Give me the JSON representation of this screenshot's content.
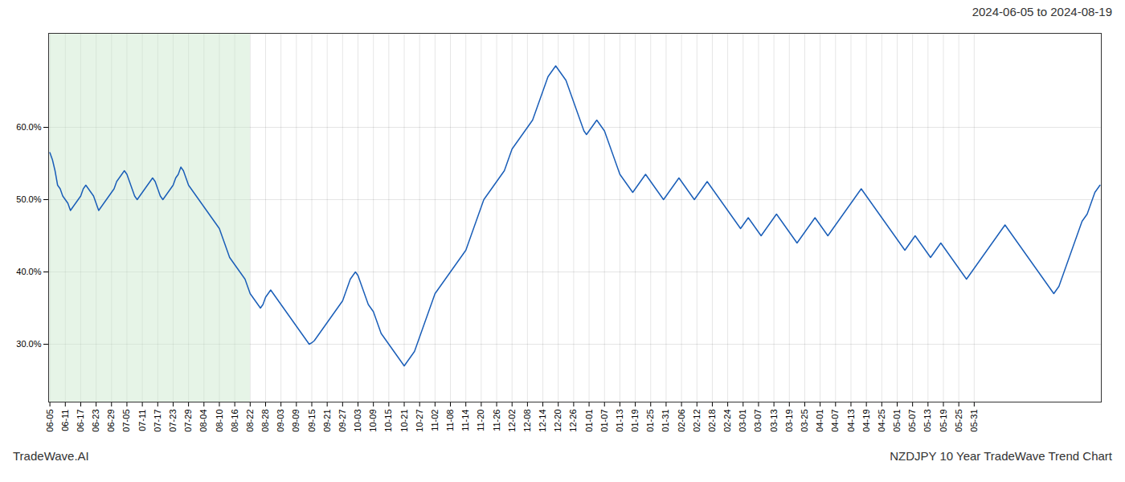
{
  "chart_data": {
    "type": "line",
    "title": "2024-06-05 to 2024-08-19",
    "annotations": [
      "TradeWave.AI",
      "NZDJPY 10 Year TradeWave Trend Chart"
    ],
    "color": "#1a5eb8",
    "grid": true,
    "highlight": {
      "from": "06-05",
      "to": "08-22",
      "color": "#c8e6c9"
    },
    "ylim": [
      22,
      73
    ],
    "yticks": [
      {
        "value": 30.0,
        "label": "30.0%"
      },
      {
        "value": 40.0,
        "label": "40.0%"
      },
      {
        "value": 50.0,
        "label": "50.0%"
      },
      {
        "value": 60.0,
        "label": "60.0%"
      }
    ],
    "categories": [
      "06-05",
      null,
      null,
      null,
      null,
      null,
      "06-11",
      null,
      null,
      null,
      null,
      null,
      "06-17",
      null,
      null,
      null,
      null,
      null,
      "06-23",
      null,
      null,
      null,
      null,
      null,
      "06-29",
      null,
      null,
      null,
      null,
      null,
      "07-05",
      null,
      null,
      null,
      null,
      null,
      "07-11",
      null,
      null,
      null,
      null,
      null,
      "07-17",
      null,
      null,
      null,
      null,
      null,
      "07-23",
      null,
      null,
      null,
      null,
      null,
      "07-29",
      null,
      null,
      null,
      null,
      null,
      "08-04",
      null,
      null,
      null,
      null,
      null,
      "08-10",
      null,
      null,
      null,
      null,
      null,
      "08-16",
      null,
      null,
      null,
      null,
      null,
      "08-22",
      null,
      null,
      null,
      null,
      null,
      "08-28",
      null,
      null,
      null,
      null,
      null,
      "09-03",
      null,
      null,
      null,
      null,
      null,
      "09-09",
      null,
      null,
      null,
      null,
      null,
      "09-15",
      null,
      null,
      null,
      null,
      null,
      "09-21",
      null,
      null,
      null,
      null,
      null,
      "09-27",
      null,
      null,
      null,
      null,
      null,
      "10-03",
      null,
      null,
      null,
      null,
      null,
      "10-09",
      null,
      null,
      null,
      null,
      null,
      "10-15",
      null,
      null,
      null,
      null,
      null,
      "10-21",
      null,
      null,
      null,
      null,
      null,
      "10-27",
      null,
      null,
      null,
      null,
      null,
      "11-02",
      null,
      null,
      null,
      null,
      null,
      "11-08",
      null,
      null,
      null,
      null,
      null,
      "11-14",
      null,
      null,
      null,
      null,
      null,
      "11-20",
      null,
      null,
      null,
      null,
      null,
      "11-26",
      null,
      null,
      null,
      null,
      null,
      "12-02",
      null,
      null,
      null,
      null,
      null,
      "12-08",
      null,
      null,
      null,
      null,
      null,
      "12-14",
      null,
      null,
      null,
      null,
      null,
      "12-20",
      null,
      null,
      null,
      null,
      null,
      "12-26",
      null,
      null,
      null,
      null,
      null,
      "01-01",
      null,
      null,
      null,
      null,
      null,
      "01-07",
      null,
      null,
      null,
      null,
      null,
      "01-13",
      null,
      null,
      null,
      null,
      null,
      "01-19",
      null,
      null,
      null,
      null,
      null,
      "01-25",
      null,
      null,
      null,
      null,
      null,
      "01-31",
      null,
      null,
      null,
      null,
      null,
      "02-06",
      null,
      null,
      null,
      null,
      null,
      "02-12",
      null,
      null,
      null,
      null,
      null,
      "02-18",
      null,
      null,
      null,
      null,
      null,
      "02-24",
      null,
      null,
      null,
      null,
      null,
      "03-01",
      null,
      null,
      null,
      null,
      null,
      "03-07",
      null,
      null,
      null,
      null,
      null,
      "03-13",
      null,
      null,
      null,
      null,
      null,
      "03-19",
      null,
      null,
      null,
      null,
      null,
      "03-25",
      null,
      null,
      null,
      null,
      null,
      "04-01",
      null,
      null,
      null,
      null,
      null,
      "04-07",
      null,
      null,
      null,
      null,
      null,
      "04-13",
      null,
      null,
      null,
      null,
      null,
      "04-19",
      null,
      null,
      null,
      null,
      null,
      "04-25",
      null,
      null,
      null,
      null,
      null,
      "05-01",
      null,
      null,
      null,
      null,
      null,
      "05-07",
      null,
      null,
      null,
      null,
      null,
      "05-13",
      null,
      null,
      null,
      null,
      null,
      "05-19",
      null,
      null,
      null,
      null,
      null,
      "05-25",
      null,
      null,
      null,
      null,
      null,
      "05-31",
      null,
      null,
      null,
      null,
      null,
      null,
      null,
      null,
      null,
      null,
      null,
      null,
      null,
      null,
      null,
      null,
      null,
      null,
      null,
      null,
      null,
      null,
      null,
      null,
      null,
      null,
      null,
      null,
      null,
      null,
      null,
      null,
      null,
      null,
      null,
      null,
      null,
      null,
      null,
      null,
      null,
      null,
      null,
      null,
      null,
      null,
      null,
      null,
      null
    ],
    "values": [
      56.5,
      55.5,
      54.0,
      52.0,
      51.5,
      50.5,
      50.0,
      49.5,
      48.5,
      49.0,
      49.5,
      50.0,
      50.5,
      51.5,
      52.0,
      51.5,
      51.0,
      50.5,
      49.5,
      48.5,
      49.0,
      49.5,
      50.0,
      50.5,
      51.0,
      51.5,
      52.5,
      53.0,
      53.5,
      54.0,
      53.5,
      52.5,
      51.5,
      50.5,
      50.0,
      50.5,
      51.0,
      51.5,
      52.0,
      52.5,
      53.0,
      52.5,
      51.5,
      50.5,
      50.0,
      50.5,
      51.0,
      51.5,
      52.0,
      53.0,
      53.5,
      54.5,
      54.0,
      53.0,
      52.0,
      51.5,
      51.0,
      50.5,
      50.0,
      49.5,
      49.0,
      48.5,
      48.0,
      47.5,
      47.0,
      46.5,
      46.0,
      45.0,
      44.0,
      43.0,
      42.0,
      41.5,
      41.0,
      40.5,
      40.0,
      39.5,
      39.0,
      38.0,
      37.0,
      36.5,
      36.0,
      35.5,
      35.0,
      35.5,
      36.5,
      37.0,
      37.5,
      37.0,
      36.5,
      36.0,
      35.5,
      35.0,
      34.5,
      34.0,
      33.5,
      33.0,
      32.5,
      32.0,
      31.5,
      31.0,
      30.5,
      30.0,
      30.2,
      30.5,
      31.0,
      31.5,
      32.0,
      32.5,
      33.0,
      33.5,
      34.0,
      34.5,
      35.0,
      35.5,
      36.0,
      37.0,
      38.0,
      39.0,
      39.5,
      40.0,
      39.5,
      38.5,
      37.5,
      36.5,
      35.5,
      35.0,
      34.5,
      33.5,
      32.5,
      31.5,
      31.0,
      30.5,
      30.0,
      29.5,
      29.0,
      28.5,
      28.0,
      27.5,
      27.0,
      27.5,
      28.0,
      28.5,
      29.0,
      30.0,
      31.0,
      32.0,
      33.0,
      34.0,
      35.0,
      36.0,
      37.0,
      37.5,
      38.0,
      38.5,
      39.0,
      39.5,
      40.0,
      40.5,
      41.0,
      41.5,
      42.0,
      42.5,
      43.0,
      44.0,
      45.0,
      46.0,
      47.0,
      48.0,
      49.0,
      50.0,
      50.5,
      51.0,
      51.5,
      52.0,
      52.5,
      53.0,
      53.5,
      54.0,
      55.0,
      56.0,
      57.0,
      57.5,
      58.0,
      58.5,
      59.0,
      59.5,
      60.0,
      60.5,
      61.0,
      62.0,
      63.0,
      64.0,
      65.0,
      66.0,
      67.0,
      67.5,
      68.0,
      68.5,
      68.0,
      67.5,
      67.0,
      66.5,
      65.5,
      64.5,
      63.5,
      62.5,
      61.5,
      60.5,
      59.5,
      59.0,
      59.5,
      60.0,
      60.5,
      61.0,
      60.5,
      60.0,
      59.5,
      58.5,
      57.5,
      56.5,
      55.5,
      54.5,
      53.5,
      53.0,
      52.5,
      52.0,
      51.5,
      51.0,
      51.5,
      52.0,
      52.5,
      53.0,
      53.5,
      53.0,
      52.5,
      52.0,
      51.5,
      51.0,
      50.5,
      50.0,
      50.5,
      51.0,
      51.5,
      52.0,
      52.5,
      53.0,
      52.5,
      52.0,
      51.5,
      51.0,
      50.5,
      50.0,
      50.5,
      51.0,
      51.5,
      52.0,
      52.5,
      52.0,
      51.5,
      51.0,
      50.5,
      50.0,
      49.5,
      49.0,
      48.5,
      48.0,
      47.5,
      47.0,
      46.5,
      46.0,
      46.5,
      47.0,
      47.5,
      47.0,
      46.5,
      46.0,
      45.5,
      45.0,
      45.5,
      46.0,
      46.5,
      47.0,
      47.5,
      48.0,
      47.5,
      47.0,
      46.5,
      46.0,
      45.5,
      45.0,
      44.5,
      44.0,
      44.5,
      45.0,
      45.5,
      46.0,
      46.5,
      47.0,
      47.5,
      47.0,
      46.5,
      46.0,
      45.5,
      45.0,
      45.5,
      46.0,
      46.5,
      47.0,
      47.5,
      48.0,
      48.5,
      49.0,
      49.5,
      50.0,
      50.5,
      51.0,
      51.5,
      51.0,
      50.5,
      50.0,
      49.5,
      49.0,
      48.5,
      48.0,
      47.5,
      47.0,
      46.5,
      46.0,
      45.5,
      45.0,
      44.5,
      44.0,
      43.5,
      43.0,
      43.5,
      44.0,
      44.5,
      45.0,
      44.5,
      44.0,
      43.5,
      43.0,
      42.5,
      42.0,
      42.5,
      43.0,
      43.5,
      44.0,
      43.5,
      43.0,
      42.5,
      42.0,
      41.5,
      41.0,
      40.5,
      40.0,
      39.5,
      39.0,
      39.5,
      40.0,
      40.5,
      41.0,
      41.5,
      42.0,
      42.5,
      43.0,
      43.5,
      44.0,
      44.5,
      45.0,
      45.5,
      46.0,
      46.5,
      46.0,
      45.5,
      45.0,
      44.5,
      44.0,
      43.5,
      43.0,
      42.5,
      42.0,
      41.5,
      41.0,
      40.5,
      40.0,
      39.5,
      39.0,
      38.5,
      38.0,
      37.5,
      37.0,
      37.5,
      38.0,
      39.0,
      40.0,
      41.0,
      42.0,
      43.0,
      44.0,
      45.0,
      46.0,
      47.0,
      47.5,
      48.0,
      49.0,
      50.0,
      51.0,
      51.5,
      52.0
    ]
  }
}
